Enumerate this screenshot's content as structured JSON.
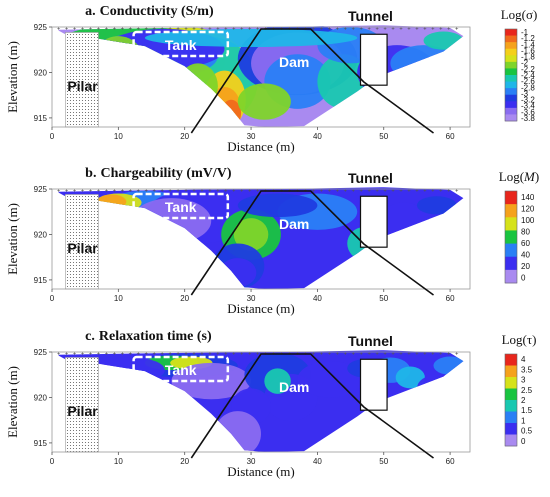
{
  "chart_data": [
    {
      "type": "heatmap",
      "panel_letter": "a.",
      "title": "Conductivity (S/m)",
      "xlabel": "Distance (m)",
      "ylabel": "Elevation (m)",
      "xlim": [
        0,
        63
      ],
      "ylim": [
        914,
        925
      ],
      "x_ticks": [
        "0",
        "10",
        "20",
        "30",
        "40",
        "50",
        "60"
      ],
      "y_ticks": [
        "925",
        "920",
        "915"
      ],
      "annotations": {
        "tank": "Tank",
        "dam": "Dam",
        "pilar": "Pilar",
        "tunnel": "Tunnel"
      },
      "colorbar": {
        "title": "Log(σ)",
        "ticks": [
          "-1",
          "-1.2",
          "-1.4",
          "-1.6",
          "-1.8",
          "-2",
          "-2.2",
          "-2.4",
          "-2.6",
          "-2.8",
          "-3",
          "-3.2",
          "-3.4",
          "-3.6",
          "-3.8"
        ]
      }
    },
    {
      "type": "heatmap",
      "panel_letter": "b.",
      "title": "Chargeability (mV/V)",
      "xlabel": "Distance (m)",
      "ylabel": "Elevation (m)",
      "xlim": [
        0,
        63
      ],
      "ylim": [
        914,
        925
      ],
      "x_ticks": [
        "0",
        "10",
        "20",
        "30",
        "40",
        "50",
        "60"
      ],
      "y_ticks": [
        "925",
        "920",
        "915"
      ],
      "annotations": {
        "tank": "Tank",
        "dam": "Dam",
        "pilar": "Pilar",
        "tunnel": "Tunnel"
      },
      "colorbar": {
        "title_prefix": "Log(",
        "title_var": "M",
        "title_suffix": ")",
        "ticks": [
          "140",
          "120",
          "100",
          "80",
          "60",
          "40",
          "20",
          "0"
        ]
      }
    },
    {
      "type": "heatmap",
      "panel_letter": "c.",
      "title": "Relaxation time (s)",
      "xlabel": "Distance (m)",
      "ylabel": "Elevation (m)",
      "xlim": [
        0,
        63
      ],
      "ylim": [
        914,
        925
      ],
      "x_ticks": [
        "0",
        "10",
        "20",
        "30",
        "40",
        "50",
        "60"
      ],
      "y_ticks": [
        "925",
        "920",
        "915"
      ],
      "annotations": {
        "tank": "Tank",
        "dam": "Dam",
        "pilar": "Pilar",
        "tunnel": "Tunnel"
      },
      "colorbar": {
        "title": "Log(τ)",
        "ticks": [
          "4",
          "3.5",
          "3",
          "2.5",
          "2",
          "1.5",
          "1",
          "0.5",
          "0"
        ]
      }
    }
  ],
  "colors": {
    "palette": [
      "#a98af0",
      "#8a6cf0",
      "#3b2ef0",
      "#1f3ce0",
      "#2a7ff5",
      "#1fb6e8",
      "#19c8b0",
      "#19c440",
      "#7fd42a",
      "#d6e21a",
      "#f4d01a",
      "#f5a21c",
      "#f06a1c",
      "#e8261c"
    ]
  }
}
